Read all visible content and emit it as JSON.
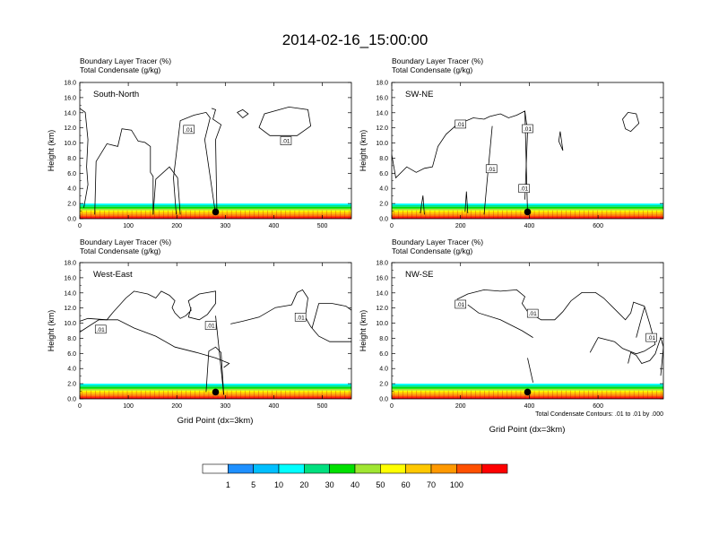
{
  "title": "2014-02-16_15:00:00",
  "common": {
    "top_label_1": "Boundary Layer Tracer   (%)",
    "top_label_2": "Total Condensate   (g/kg)",
    "ylabel": "Height (km)",
    "xlabel": "Grid Point (dx=3km)",
    "contour_note": "Total Condensate Contours: .01 to .01 by .000",
    "contour_label": ".01"
  },
  "colorbar": {
    "labels": [
      "1",
      "5",
      "10",
      "20",
      "30",
      "40",
      "50",
      "60",
      "70",
      "100"
    ],
    "colors": [
      "#ffffff",
      "#1e90ff",
      "#00bfff",
      "#00ffff",
      "#00e07f",
      "#00e000",
      "#a0e632",
      "#ffff00",
      "#ffc800",
      "#ff9900",
      "#ff5000",
      "#ff0000"
    ]
  },
  "chart_data": [
    {
      "type": "heatmap",
      "name": "South-North",
      "title": "South-North",
      "xlim": [
        0,
        560
      ],
      "ylim": [
        0,
        18
      ],
      "xticks": [
        0,
        100,
        200,
        300,
        400,
        500
      ],
      "yticks": [
        0,
        2,
        4,
        6,
        8,
        10,
        12,
        14,
        16,
        18
      ],
      "ytick_labels": [
        "0.0",
        "2.0",
        "4.0",
        "6.0",
        "8.0",
        "10.0",
        "12.0",
        "14.0",
        "16.0",
        "18.0"
      ],
      "pbl_top_km": 2.0,
      "marker": {
        "x": 280,
        "y": 0.9
      },
      "contour": [
        {
          "label": ".01",
          "x": 225,
          "y": 11.8
        },
        {
          "label": ".01",
          "x": 425,
          "y": 10.3
        }
      ]
    },
    {
      "type": "heatmap",
      "name": "SW-NE",
      "title": "SW-NE",
      "xlim": [
        0,
        790
      ],
      "ylim": [
        0,
        18
      ],
      "xticks": [
        0,
        200,
        400,
        600
      ],
      "yticks": [
        0,
        2,
        4,
        6,
        8,
        10,
        12,
        14,
        16,
        18
      ],
      "ytick_labels": [
        "0.0",
        "2.0",
        "4.0",
        "6.0",
        "8.0",
        "10.0",
        "12.0",
        "14.0",
        "16.0",
        "18.0"
      ],
      "pbl_top_km": 2.0,
      "marker": {
        "x": 395,
        "y": 0.9
      },
      "contour": [
        {
          "label": ".01",
          "x": 200,
          "y": 12.5
        },
        {
          "label": ".01",
          "x": 395,
          "y": 11.9
        },
        {
          "label": ".01",
          "x": 290,
          "y": 6.6
        },
        {
          "label": ".01",
          "x": 385,
          "y": 4.0
        }
      ]
    },
    {
      "type": "heatmap",
      "name": "West-East",
      "title": "West-East",
      "xlim": [
        0,
        560
      ],
      "ylim": [
        0,
        18
      ],
      "xticks": [
        0,
        100,
        200,
        300,
        400,
        500
      ],
      "yticks": [
        0,
        2,
        4,
        6,
        8,
        10,
        12,
        14,
        16,
        18
      ],
      "ytick_labels": [
        "0.0",
        "2.0",
        "4.0",
        "6.0",
        "8.0",
        "10.0",
        "12.0",
        "14.0",
        "16.0",
        "18.0"
      ],
      "pbl_top_km": 2.0,
      "marker": {
        "x": 280,
        "y": 0.9
      },
      "contour": [
        {
          "label": ".01",
          "x": 43,
          "y": 9.2
        },
        {
          "label": ".01",
          "x": 270,
          "y": 9.7
        },
        {
          "label": ".01",
          "x": 455,
          "y": 10.8
        }
      ]
    },
    {
      "type": "heatmap",
      "name": "NW-SE",
      "title": "NW-SE",
      "xlim": [
        0,
        790
      ],
      "ylim": [
        0,
        18
      ],
      "xticks": [
        0,
        200,
        400,
        600
      ],
      "yticks": [
        0,
        2,
        4,
        6,
        8,
        10,
        12,
        14,
        16,
        18
      ],
      "ytick_labels": [
        "0.0",
        "2.0",
        "4.0",
        "6.0",
        "8.0",
        "10.0",
        "12.0",
        "14.0",
        "16.0",
        "18.0"
      ],
      "pbl_top_km": 2.0,
      "marker": {
        "x": 395,
        "y": 0.9
      },
      "contour": [
        {
          "label": ".01",
          "x": 200,
          "y": 12.5
        },
        {
          "label": ".01",
          "x": 410,
          "y": 11.3
        },
        {
          "label": ".01",
          "x": 755,
          "y": 8.1
        }
      ]
    }
  ]
}
